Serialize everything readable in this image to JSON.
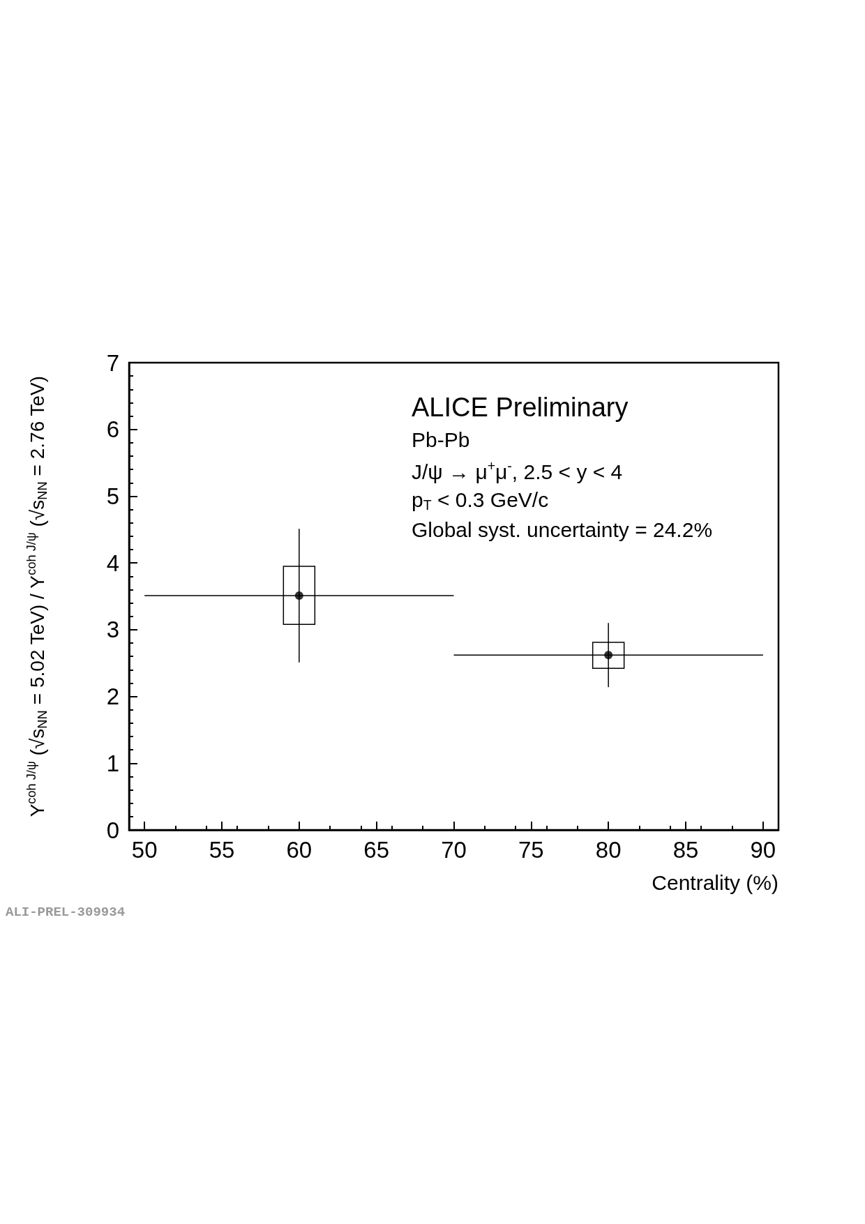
{
  "chart_data": {
    "type": "scatter",
    "xlabel": "Centrality (%)",
    "ylabel": "Y$^{coh J/ψ}$ (√s$_{NN}$ = 5.02 TeV) / Y$^{coh J/ψ}$ (√s$_{NN}$ = 2.76 TeV)",
    "x": [
      60,
      80
    ],
    "series": [
      {
        "color": "#000000",
        "values": [
          3.51,
          2.62
        ],
        "errors": [
          1.0,
          0.48
        ],
        "xerrors": [
          10,
          10
        ]
      },
      {
        "type": "bar",
        "color": "#000000",
        "x": [
          60,
          80
        ],
        "base": [
          3.08,
          2.42
        ],
        "values": [
          0.87,
          0.39
        ]
      }
    ],
    "marker": "circle",
    "xlim": [
      49,
      91
    ],
    "xticks": [
      50,
      55,
      60,
      65,
      70,
      75,
      80,
      85,
      90
    ],
    "ylim": [
      0,
      7
    ],
    "yticks": [
      0,
      1,
      2,
      3,
      4,
      5,
      6,
      7
    ],
    "annotations": [
      "ALICE Preliminary",
      "Pb-Pb",
      "J/ψ → μ$^{+}$μ$^{-}$, 2.5 < y < 4",
      "p$_{T}$ < 0.3 GeV/c",
      "Global syst. uncertainty = 24.2%",
      "ALI-PREL-309934"
    ]
  }
}
